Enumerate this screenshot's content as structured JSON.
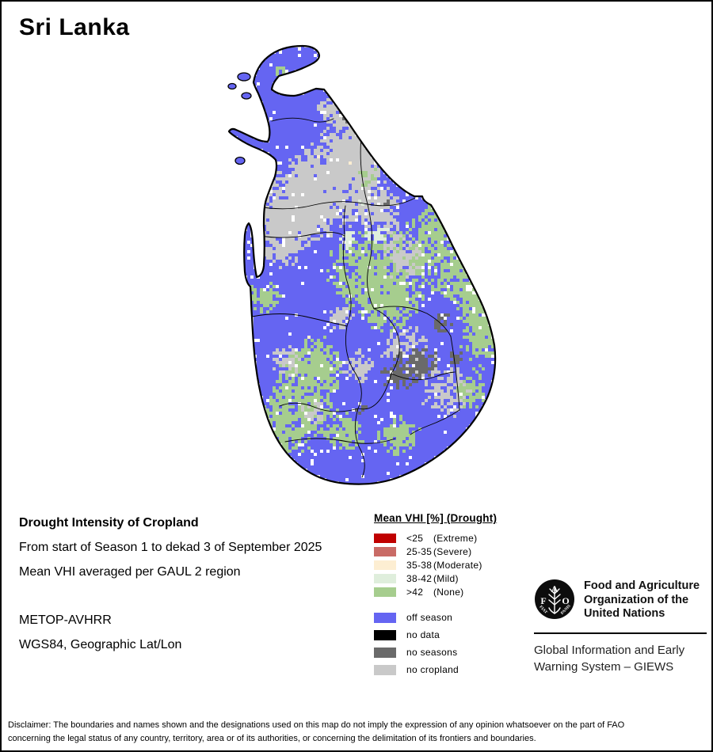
{
  "title": "Sri Lanka",
  "info": {
    "heading": "Drought Intensity of Cropland",
    "period": "From start of Season 1 to dekad 3 of September 2025",
    "method": "Mean VHI averaged per GAUL 2 region",
    "sensor": "METOP-AVHRR",
    "projection": "WGS84, Geographic Lat/Lon"
  },
  "legend": {
    "title": "Mean VHI [%] (Drought)",
    "drought_classes": [
      {
        "range": "<25",
        "label": "(Extreme)",
        "color": "#c00000"
      },
      {
        "range": "25-35",
        "label": "(Severe)",
        "color": "#c96b66"
      },
      {
        "range": "35-38",
        "label": "(Moderate)",
        "color": "#fdeed2"
      },
      {
        "range": "38-42",
        "label": "(Mild)",
        "color": "#dfeedc"
      },
      {
        "range": ">42",
        "label": "(None)",
        "color": "#a6cd8e"
      }
    ],
    "other_classes": [
      {
        "label": "off season",
        "color": "#6565f2"
      },
      {
        "label": "no data",
        "color": "#000000"
      },
      {
        "label": "no seasons",
        "color": "#6a6a6a"
      },
      {
        "label": "no cropland",
        "color": "#c9c9c9"
      }
    ]
  },
  "fao": {
    "logo_letters": {
      "f": "F",
      "a": "A",
      "o": "O",
      "fiat": "FIAT",
      "panis": "PANIS"
    },
    "org_lines": [
      "Food and Agriculture",
      "Organization of the",
      "United Nations"
    ],
    "giews_lines": [
      "Global Information and Early",
      "Warning System – GIEWS"
    ]
  },
  "disclaimer": "Disclaimer: The boundaries and names shown and the designations used on this map do not imply the expression of any opinion whatsoever on the part of FAO concerning the legal status of any country, territory, area or of its authorities, or concerning the delimitation of its frontiers and boundaries."
}
